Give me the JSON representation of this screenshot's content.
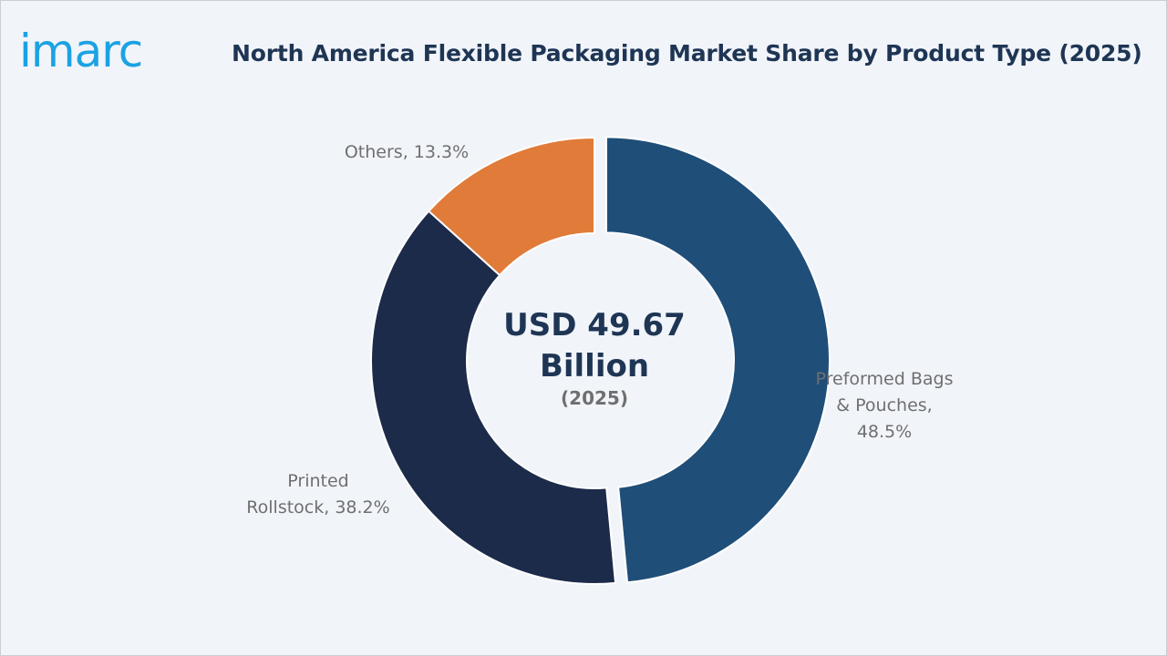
{
  "brand": {
    "logo_text": "imarc",
    "logo_color": "#1ba2e3"
  },
  "chart_data": {
    "type": "pie",
    "variant": "donut",
    "title": "North America Flexible Packaging Market Share by Product Type (2025)",
    "center_text": {
      "line1": "USD 49.67",
      "line2": "Billion",
      "line3": "(2025)"
    },
    "slices": [
      {
        "name": "Preformed Bags & Pouches",
        "value": 48.5,
        "label_lines": [
          "Preformed Bags",
          "& Pouches,",
          "48.5%"
        ],
        "color": "#1f4e79",
        "exploded": true
      },
      {
        "name": "Printed Rollstock",
        "value": 38.2,
        "label_lines": [
          "Printed",
          "Rollstock, 38.2%"
        ],
        "color": "#1c2b4a",
        "exploded": false
      },
      {
        "name": "Others",
        "value": 13.3,
        "label_lines": [
          "Others, 13.3%"
        ],
        "color": "#e07b39",
        "exploded": false
      }
    ],
    "legend": "none",
    "background_color": "#f1f4f9"
  }
}
